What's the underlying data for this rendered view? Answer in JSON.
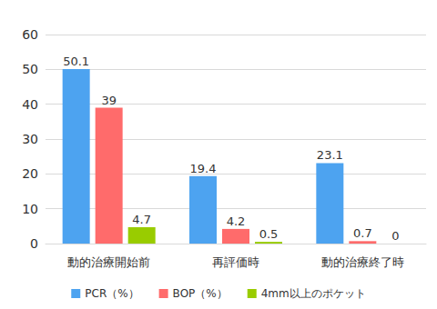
{
  "chart_data": {
    "type": "bar",
    "categories": [
      "動的治療開始前",
      "再評価時",
      "動的治療終了時"
    ],
    "series": [
      {
        "name": "PCR（%）",
        "color": "#4da3f0",
        "values": [
          50.1,
          19.4,
          23.1
        ]
      },
      {
        "name": "BOP（%）",
        "color": "#ff6b6b",
        "values": [
          39,
          4.2,
          0.7
        ]
      },
      {
        "name": "4mm以上のポケット",
        "color": "#99cc00",
        "values": [
          4.7,
          0.5,
          0
        ]
      }
    ],
    "ylim": [
      0,
      60
    ],
    "yticks": [
      0,
      10,
      20,
      30,
      40,
      50,
      60
    ],
    "grid": true,
    "legend": "bottom",
    "data_labels": true
  }
}
